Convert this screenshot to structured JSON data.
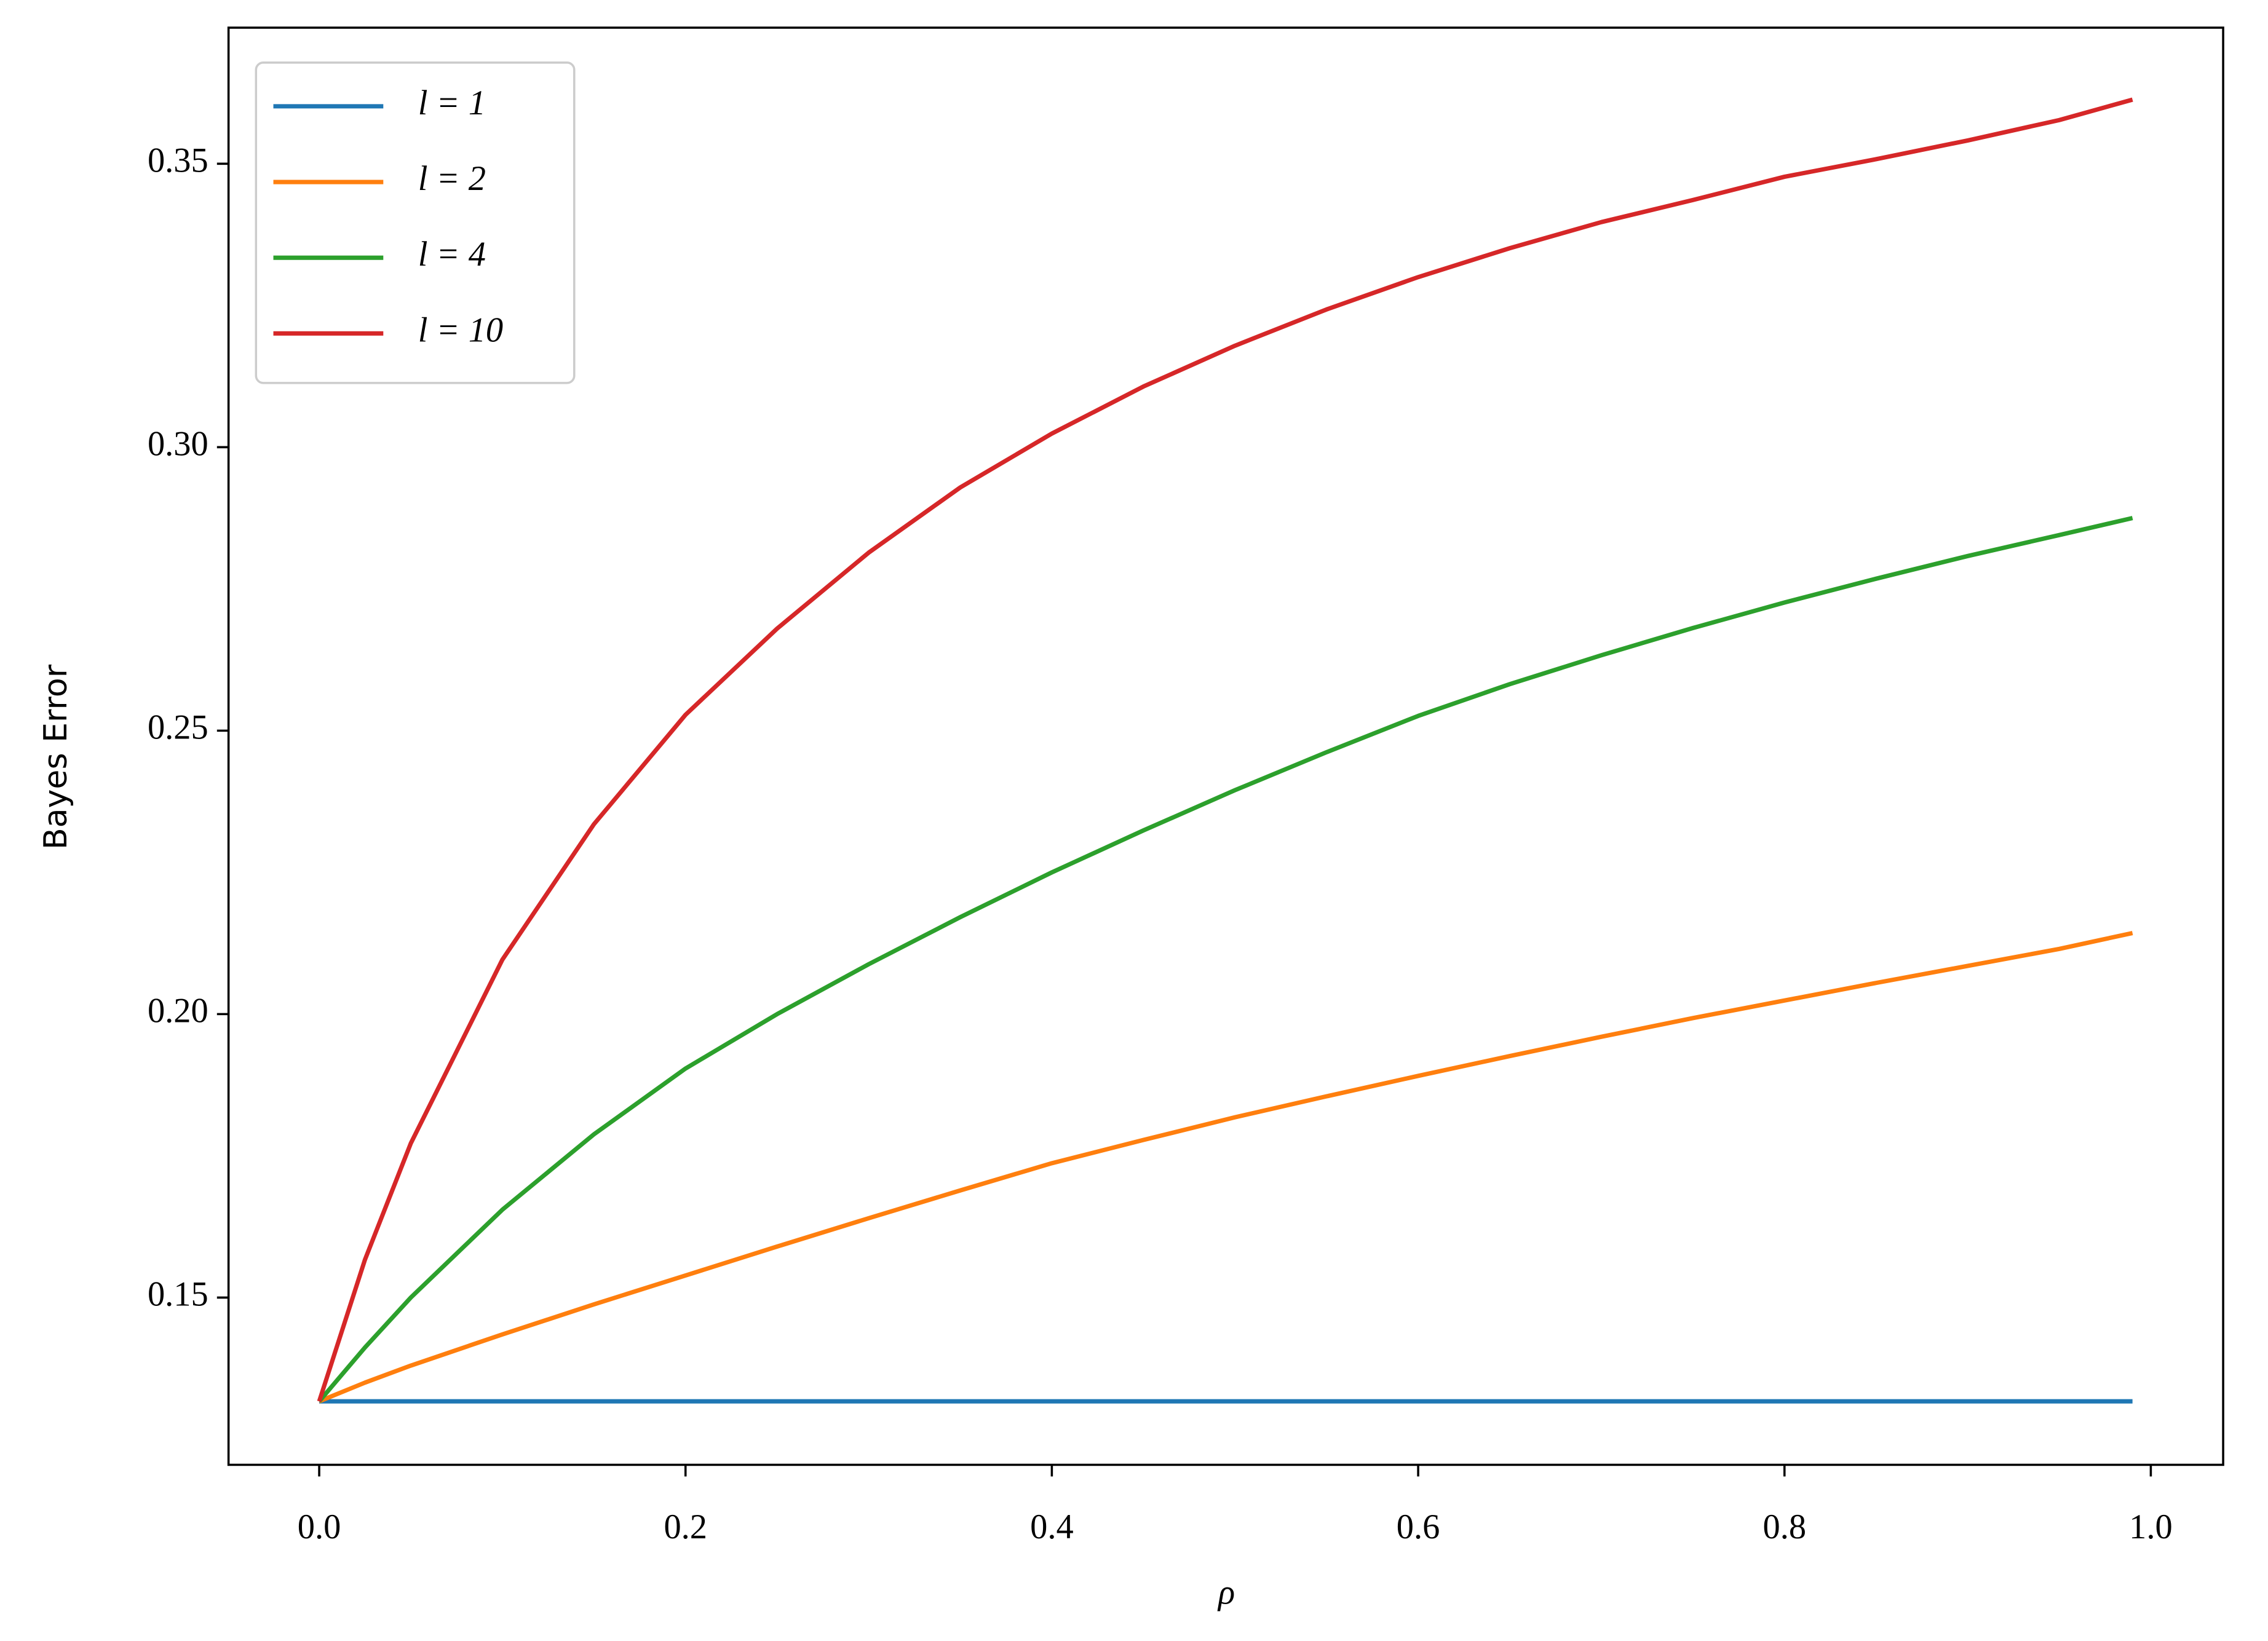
{
  "chart_data": {
    "type": "line",
    "xlabel": "ρ",
    "ylabel": "Bayes Error",
    "x": [
      0,
      0.025,
      0.05,
      0.1,
      0.15,
      0.2,
      0.25,
      0.3,
      0.35,
      0.4,
      0.45,
      0.5,
      0.55,
      0.6,
      0.65,
      0.7,
      0.75,
      0.8,
      0.85,
      0.9,
      0.95,
      0.99
    ],
    "series": [
      {
        "name": "l = 1",
        "color": "#1f77b4",
        "values": [
          0.1317,
          0.1317,
          0.1317,
          0.1317,
          0.1317,
          0.1317,
          0.1317,
          0.1317,
          0.1317,
          0.1317,
          0.1317,
          0.1317,
          0.1317,
          0.1317,
          0.1317,
          0.1317,
          0.1317,
          0.1317,
          0.1317,
          0.1317,
          0.1317,
          0.1317
        ]
      },
      {
        "name": "l = 2",
        "color": "#ff7f0e",
        "values": [
          0.1317,
          0.135,
          0.138,
          0.1435,
          0.1488,
          0.1539,
          0.159,
          0.164,
          0.1689,
          0.1737,
          0.1778,
          0.1818,
          0.1855,
          0.1891,
          0.1926,
          0.196,
          0.1993,
          0.2024,
          0.2055,
          0.2085,
          0.2115,
          0.2143
        ]
      },
      {
        "name": "l = 4",
        "color": "#2ca02c",
        "values": [
          0.1317,
          0.1412,
          0.15,
          0.1655,
          0.1788,
          0.1904,
          0.2,
          0.2088,
          0.2171,
          0.225,
          0.2324,
          0.2395,
          0.2462,
          0.2526,
          0.2582,
          0.2633,
          0.2681,
          0.2726,
          0.2768,
          0.2808,
          0.2845,
          0.2875
        ]
      },
      {
        "name": "l = 10",
        "color": "#d62728",
        "values": [
          0.1317,
          0.1567,
          0.1772,
          0.2096,
          0.2335,
          0.2528,
          0.268,
          0.2814,
          0.2929,
          0.3024,
          0.3107,
          0.3179,
          0.3243,
          0.33,
          0.3351,
          0.3397,
          0.3436,
          0.3477,
          0.3508,
          0.3541,
          0.3577,
          0.3613
        ]
      }
    ],
    "xlim": [
      -0.0495,
      1.0395
    ],
    "ylim": [
      0.1205,
      0.374
    ],
    "xticks": [
      {
        "value": 0,
        "label": "0.0"
      },
      {
        "value": 0.2,
        "label": "0.2"
      },
      {
        "value": 0.4,
        "label": "0.4"
      },
      {
        "value": 0.6,
        "label": "0.6"
      },
      {
        "value": 0.8,
        "label": "0.8"
      },
      {
        "value": 1,
        "label": "1.0"
      }
    ],
    "yticks": [
      0.15,
      {
        "value": 0.2,
        "label": "0.20"
      },
      0.25,
      {
        "value": 0.3,
        "label": "0.30"
      },
      0.35
    ],
    "legend": "upper-left"
  }
}
